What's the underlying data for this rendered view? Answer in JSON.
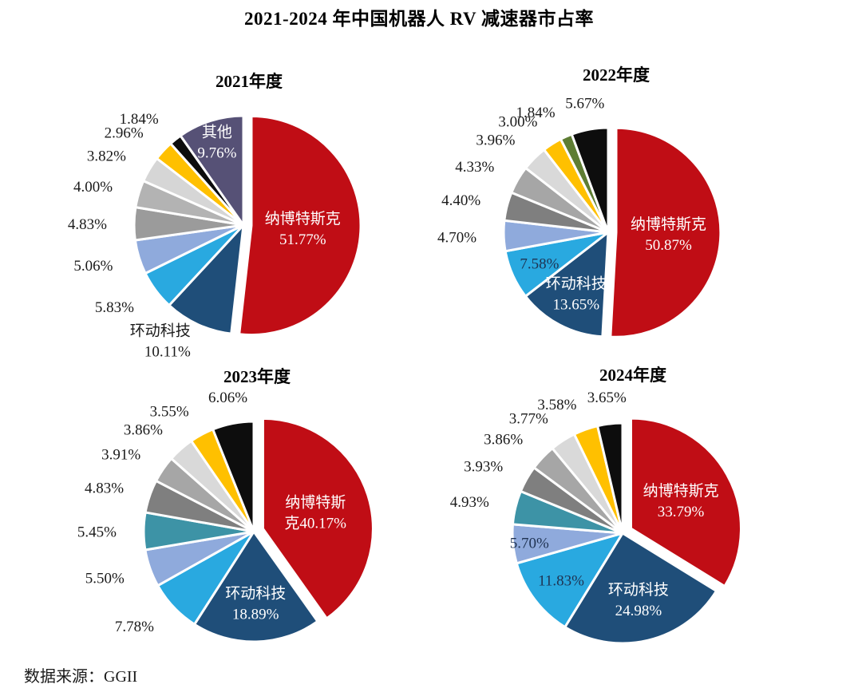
{
  "page": {
    "title": "2021-2024 年中国机器人 RV 减速器市占率",
    "source": "数据来源：GGII"
  },
  "chart_data": [
    {
      "type": "pie",
      "title": "2021年度",
      "legend_position": "none",
      "slices": [
        {
          "name": "纳博特斯克",
          "value": 51.77,
          "display": "51.77%",
          "color": "#C00D15",
          "placement": "inside",
          "lines": [
            "纳博特斯克",
            "51.77%"
          ],
          "text_color": "#FFFFFF",
          "label_r": 0.47,
          "explode": 10
        },
        {
          "name": "环动科技",
          "value": 10.11,
          "display": "10.11%",
          "color": "#1F4E79",
          "placement": "outside",
          "lines": [
            "环动科技",
            "10.11%"
          ]
        },
        {
          "name": "",
          "value": 5.83,
          "display": "5.83%",
          "color": "#29A9E0",
          "placement": "outside",
          "lines": [
            "5.83%"
          ]
        },
        {
          "name": "",
          "value": 5.06,
          "display": "5.06%",
          "color": "#8FAADC",
          "placement": "outside",
          "lines": [
            "5.06%"
          ]
        },
        {
          "name": "",
          "value": 4.83,
          "display": "4.83%",
          "color": "#9B9B9B",
          "placement": "outside",
          "lines": [
            "4.83%"
          ]
        },
        {
          "name": "",
          "value": 4.0,
          "display": "4.00%",
          "color": "#B3B3B3",
          "placement": "outside",
          "lines": [
            "4.00%"
          ]
        },
        {
          "name": "",
          "value": 3.82,
          "display": "3.82%",
          "color": "#D6D6D6",
          "placement": "outside",
          "lines": [
            "3.82%"
          ]
        },
        {
          "name": "",
          "value": 2.96,
          "display": "2.96%",
          "color": "#FFC000",
          "placement": "outside",
          "lines": [
            "2.96%"
          ]
        },
        {
          "name": "",
          "value": 1.84,
          "display": "1.84%",
          "color": "#0D0D0D",
          "placement": "outside",
          "lines": [
            "1.84%"
          ]
        },
        {
          "name": "其他",
          "value": 9.76,
          "display": "9.76%",
          "color": "#565176",
          "placement": "inside",
          "lines": [
            "其他",
            "9.76%"
          ],
          "text_color": "#FFFFFF",
          "label_r": 0.8
        }
      ]
    },
    {
      "type": "pie",
      "title": "2022年度",
      "legend_position": "none",
      "slices": [
        {
          "name": "纳博特斯克",
          "value": 50.87,
          "display": "50.87%",
          "color": "#C00D15",
          "placement": "inside",
          "lines": [
            "纳博特斯克",
            "50.87%"
          ],
          "text_color": "#FFFFFF",
          "label_r": 0.5,
          "explode": 10
        },
        {
          "name": "环动科技",
          "value": 13.65,
          "display": "13.65%",
          "color": "#1F4E79",
          "placement": "inside",
          "lines": [
            "环动科技",
            "13.65%"
          ],
          "text_color": "#FFFFFF",
          "label_r": 0.66
        },
        {
          "name": "",
          "value": 7.58,
          "display": "7.58%",
          "color": "#29A9E0",
          "placement": "inside",
          "lines": [
            "7.58%"
          ],
          "text_color": "#1F3352",
          "label_r": 0.72
        },
        {
          "name": "",
          "value": 4.7,
          "display": "4.70%",
          "color": "#8FAADC",
          "placement": "outside",
          "lines": [
            "4.70%"
          ]
        },
        {
          "name": "",
          "value": 4.4,
          "display": "4.40%",
          "color": "#7F7F7F",
          "placement": "outside",
          "lines": [
            "4.40%"
          ]
        },
        {
          "name": "",
          "value": 4.33,
          "display": "4.33%",
          "color": "#A6A6A6",
          "placement": "outside",
          "lines": [
            "4.33%"
          ]
        },
        {
          "name": "",
          "value": 3.96,
          "display": "3.96%",
          "color": "#D9D9D9",
          "placement": "outside",
          "lines": [
            "3.96%"
          ]
        },
        {
          "name": "",
          "value": 3.0,
          "display": "3.00%",
          "color": "#FFC000",
          "placement": "outside",
          "lines": [
            "3.00%"
          ]
        },
        {
          "name": "",
          "value": 1.84,
          "display": "1.84%",
          "color": "#5E7D33",
          "placement": "outside",
          "lines": [
            "1.84%"
          ]
        },
        {
          "name": "",
          "value": 5.67,
          "display": "5.67%",
          "color": "#0D0D0D",
          "placement": "outside",
          "lines": [
            "5.67%"
          ]
        }
      ]
    },
    {
      "type": "pie",
      "title": "2023年度",
      "legend_position": "none",
      "slices": [
        {
          "name": "纳博特斯克",
          "value": 40.17,
          "display": "40.17%",
          "color": "#C00D15",
          "placement": "inside",
          "lines": [
            "纳博特斯",
            "克40.17%"
          ],
          "text_color": "#FFFFFF",
          "label_r": 0.5,
          "explode": 12
        },
        {
          "name": "环动科技",
          "value": 18.89,
          "display": "18.89%",
          "color": "#1F4E79",
          "placement": "inside",
          "lines": [
            "环动科技",
            "18.89%"
          ],
          "text_color": "#FFFFFF",
          "label_r": 0.65
        },
        {
          "name": "",
          "value": 7.78,
          "display": "7.78%",
          "color": "#29A9E0",
          "placement": "outside",
          "lines": [
            "7.78%"
          ]
        },
        {
          "name": "",
          "value": 5.5,
          "display": "5.50%",
          "color": "#8FAADC",
          "placement": "outside",
          "lines": [
            "5.50%"
          ]
        },
        {
          "name": "",
          "value": 5.45,
          "display": "5.45%",
          "color": "#3D93A6",
          "placement": "outside",
          "lines": [
            "5.45%"
          ]
        },
        {
          "name": "",
          "value": 4.83,
          "display": "4.83%",
          "color": "#7F7F7F",
          "placement": "outside",
          "lines": [
            "4.83%"
          ]
        },
        {
          "name": "",
          "value": 3.91,
          "display": "3.91%",
          "color": "#A6A6A6",
          "placement": "outside",
          "lines": [
            "3.91%"
          ]
        },
        {
          "name": "",
          "value": 3.86,
          "display": "3.86%",
          "color": "#D9D9D9",
          "placement": "outside",
          "lines": [
            "3.86%"
          ]
        },
        {
          "name": "",
          "value": 3.55,
          "display": "3.55%",
          "color": "#FFC000",
          "placement": "outside",
          "lines": [
            "3.55%"
          ]
        },
        {
          "name": "",
          "value": 6.06,
          "display": "6.06%",
          "color": "#0D0D0D",
          "placement": "outside",
          "lines": [
            "6.06%"
          ]
        }
      ]
    },
    {
      "type": "pie",
      "title": "2024年度",
      "legend_position": "none",
      "slices": [
        {
          "name": "纳博特斯克",
          "value": 33.79,
          "display": "33.79%",
          "color": "#C00D15",
          "placement": "inside",
          "lines": [
            "纳博特斯克",
            "33.79%"
          ],
          "text_color": "#FFFFFF",
          "label_r": 0.52,
          "explode": 12
        },
        {
          "name": "环动科技",
          "value": 24.98,
          "display": "24.98%",
          "color": "#1F4E79",
          "placement": "inside",
          "lines": [
            "环动科技",
            "24.98%"
          ],
          "text_color": "#FFFFFF",
          "label_r": 0.62
        },
        {
          "name": "",
          "value": 11.83,
          "display": "11.83%",
          "color": "#29A9E0",
          "placement": "inside",
          "lines": [
            "11.83%"
          ],
          "text_color": "#1F3352",
          "label_r": 0.7
        },
        {
          "name": "",
          "value": 5.7,
          "display": "5.70%",
          "color": "#8FAADC",
          "placement": "inside",
          "lines": [
            "5.70%"
          ],
          "text_color": "#1F3352",
          "label_r": 0.85
        },
        {
          "name": "",
          "value": 4.93,
          "display": "4.93%",
          "color": "#3D93A6",
          "placement": "outside",
          "lines": [
            "4.93%"
          ]
        },
        {
          "name": "",
          "value": 3.93,
          "display": "3.93%",
          "color": "#7F7F7F",
          "placement": "outside",
          "lines": [
            "3.93%"
          ]
        },
        {
          "name": "",
          "value": 3.86,
          "display": "3.86%",
          "color": "#A6A6A6",
          "placement": "outside",
          "lines": [
            "3.86%"
          ]
        },
        {
          "name": "",
          "value": 3.77,
          "display": "3.77%",
          "color": "#D9D9D9",
          "placement": "outside",
          "lines": [
            "3.77%"
          ]
        },
        {
          "name": "",
          "value": 3.58,
          "display": "3.58%",
          "color": "#FFC000",
          "placement": "outside",
          "lines": [
            "3.58%"
          ]
        },
        {
          "name": "",
          "value": 3.65,
          "display": "3.65%",
          "color": "#0D0D0D",
          "placement": "outside",
          "lines": [
            "3.65%"
          ]
        }
      ]
    }
  ]
}
